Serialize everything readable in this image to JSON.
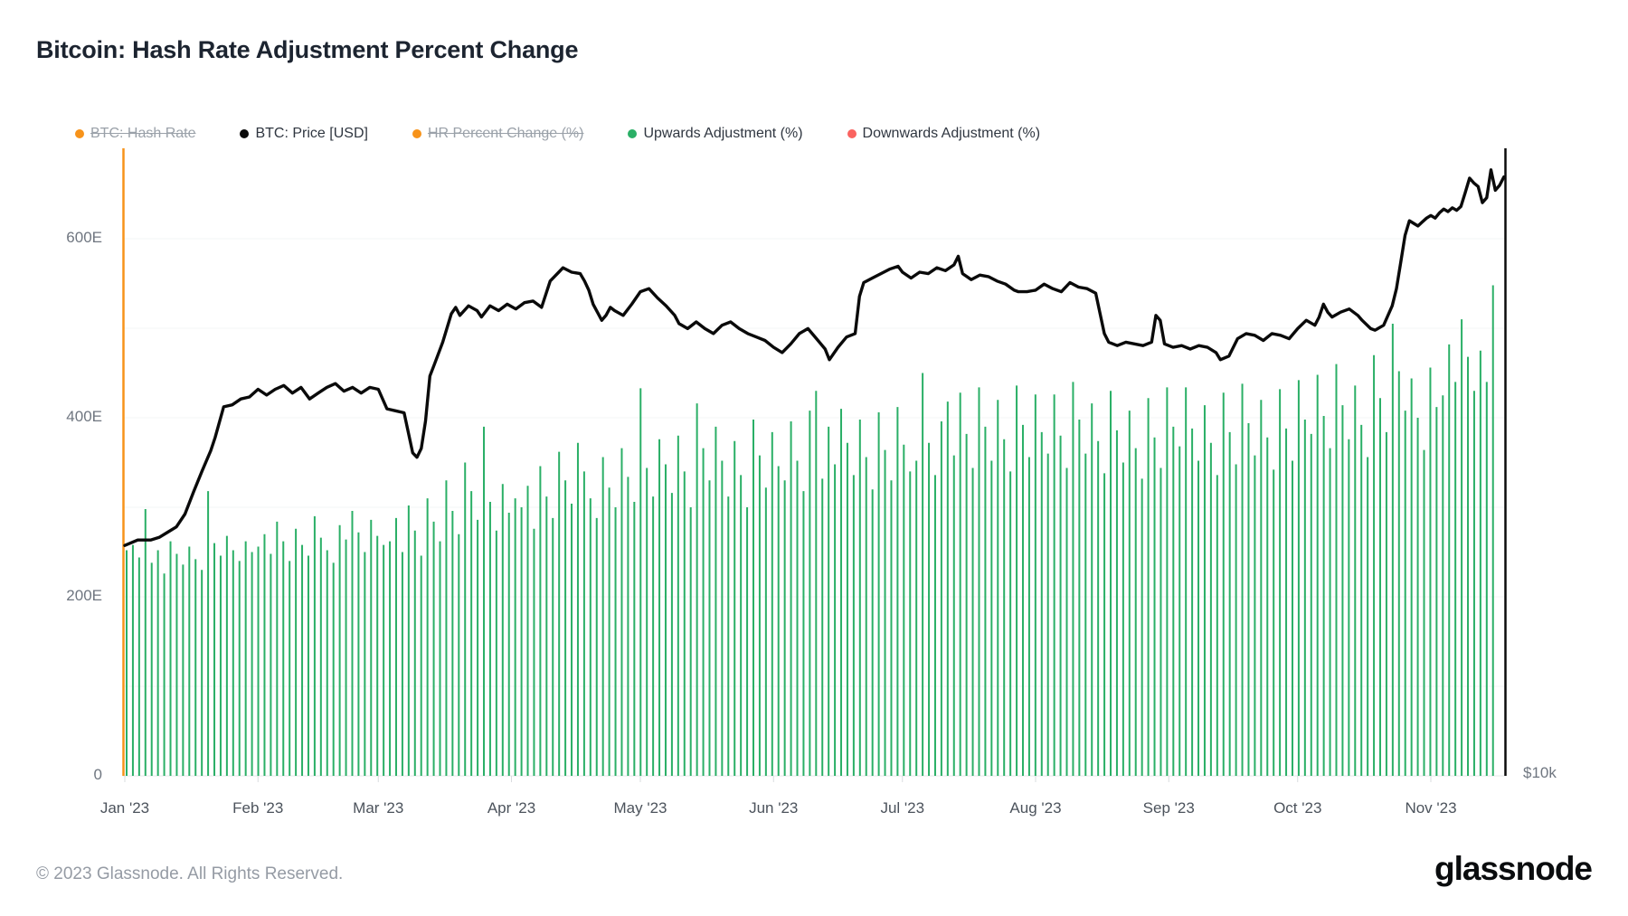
{
  "header": {
    "title": "Bitcoin: Hash Rate Adjustment Percent Change"
  },
  "legend": {
    "items": [
      {
        "label": "BTC: Hash Rate",
        "color": "#f7931a",
        "disabled": true
      },
      {
        "label": "BTC: Price [USD]",
        "color": "#0a0a0a",
        "disabled": false
      },
      {
        "label": "HR Percent Change (%)",
        "color": "#f7931a",
        "disabled": true
      },
      {
        "label": "Upwards Adjustment (%)",
        "color": "#2aaf66",
        "disabled": false
      },
      {
        "label": "Downwards Adjustment (%)",
        "color": "#fa6360",
        "disabled": false
      }
    ]
  },
  "chart_data": {
    "type": "mixed",
    "title": "Bitcoin: Hash Rate Adjustment Percent Change",
    "x_axis": {
      "unit": "date",
      "domain_days": [
        0,
        321
      ],
      "months": [
        {
          "label": "Jan '23",
          "day": 0
        },
        {
          "label": "Feb '23",
          "day": 31
        },
        {
          "label": "Mar '23",
          "day": 59
        },
        {
          "label": "Apr '23",
          "day": 90
        },
        {
          "label": "May '23",
          "day": 120
        },
        {
          "label": "Jun '23",
          "day": 151
        },
        {
          "label": "Jul '23",
          "day": 181
        },
        {
          "label": "Aug '23",
          "day": 212
        },
        {
          "label": "Sep '23",
          "day": 243
        },
        {
          "label": "Oct '23",
          "day": 273
        },
        {
          "label": "Nov '23",
          "day": 304
        }
      ]
    },
    "y_axis_left": {
      "unit": "EH/s",
      "gridline_step_E": 100,
      "range_E": [
        0,
        700
      ],
      "ticks": [
        {
          "label": "600E",
          "value": 600
        },
        {
          "label": "400E",
          "value": 400
        },
        {
          "label": "200E",
          "value": 200
        },
        {
          "label": "0",
          "value": 0
        }
      ]
    },
    "y_axis_right": {
      "unit": "USD",
      "scale": "log",
      "visible_label": {
        "label": "$10k",
        "value_usd_k": 10
      }
    },
    "annotations": {
      "start_marker": {
        "day": 0,
        "color": "#f7931a"
      }
    },
    "series": [
      {
        "name": "BTC: Price [USD]",
        "type": "line",
        "axis": "right",
        "color": "#0a0a0a",
        "points_day_usd_k": [
          [
            0,
            16.6
          ],
          [
            3,
            16.8
          ],
          [
            6,
            16.8
          ],
          [
            8,
            16.9
          ],
          [
            10,
            17.1
          ],
          [
            12,
            17.3
          ],
          [
            14,
            17.8
          ],
          [
            16,
            18.7
          ],
          [
            18,
            19.6
          ],
          [
            20,
            20.5
          ],
          [
            21,
            21.1
          ],
          [
            23,
            22.6
          ],
          [
            25,
            22.7
          ],
          [
            27,
            23.0
          ],
          [
            29,
            23.1
          ],
          [
            31,
            23.5
          ],
          [
            33,
            23.2
          ],
          [
            35,
            23.5
          ],
          [
            37,
            23.7
          ],
          [
            39,
            23.3
          ],
          [
            41,
            23.6
          ],
          [
            43,
            23.0
          ],
          [
            45,
            23.3
          ],
          [
            47,
            23.6
          ],
          [
            49,
            23.8
          ],
          [
            51,
            23.4
          ],
          [
            53,
            23.6
          ],
          [
            55,
            23.3
          ],
          [
            57,
            23.6
          ],
          [
            59,
            23.5
          ],
          [
            61,
            22.5
          ],
          [
            63,
            22.4
          ],
          [
            65,
            22.3
          ],
          [
            67,
            20.4
          ],
          [
            68,
            20.2
          ],
          [
            69,
            20.6
          ],
          [
            70,
            21.9
          ],
          [
            71,
            24.2
          ],
          [
            72,
            24.8
          ],
          [
            74,
            26.1
          ],
          [
            76,
            27.8
          ],
          [
            77,
            28.2
          ],
          [
            78,
            27.7
          ],
          [
            80,
            28.3
          ],
          [
            82,
            28.0
          ],
          [
            83,
            27.6
          ],
          [
            85,
            28.3
          ],
          [
            87,
            28.0
          ],
          [
            89,
            28.4
          ],
          [
            91,
            28.1
          ],
          [
            93,
            28.5
          ],
          [
            95,
            28.6
          ],
          [
            97,
            28.2
          ],
          [
            99,
            29.9
          ],
          [
            100,
            30.2
          ],
          [
            101,
            30.5
          ],
          [
            102,
            30.8
          ],
          [
            104,
            30.5
          ],
          [
            106,
            30.4
          ],
          [
            107,
            29.9
          ],
          [
            108,
            29.3
          ],
          [
            109,
            28.4
          ],
          [
            110,
            27.9
          ],
          [
            111,
            27.4
          ],
          [
            112,
            27.7
          ],
          [
            113,
            28.2
          ],
          [
            114,
            28.0
          ],
          [
            116,
            27.7
          ],
          [
            118,
            28.4
          ],
          [
            120,
            29.2
          ],
          [
            122,
            29.4
          ],
          [
            124,
            28.8
          ],
          [
            126,
            28.3
          ],
          [
            128,
            27.7
          ],
          [
            129,
            27.2
          ],
          [
            131,
            26.9
          ],
          [
            133,
            27.3
          ],
          [
            135,
            26.9
          ],
          [
            137,
            26.6
          ],
          [
            139,
            27.1
          ],
          [
            141,
            27.3
          ],
          [
            143,
            26.9
          ],
          [
            145,
            26.6
          ],
          [
            147,
            26.4
          ],
          [
            149,
            26.2
          ],
          [
            151,
            25.8
          ],
          [
            153,
            25.5
          ],
          [
            155,
            26.0
          ],
          [
            157,
            26.6
          ],
          [
            159,
            26.9
          ],
          [
            161,
            26.3
          ],
          [
            163,
            25.7
          ],
          [
            164,
            25.1
          ],
          [
            166,
            25.8
          ],
          [
            168,
            26.4
          ],
          [
            170,
            26.6
          ],
          [
            171,
            28.9
          ],
          [
            172,
            29.8
          ],
          [
            174,
            30.1
          ],
          [
            176,
            30.4
          ],
          [
            178,
            30.7
          ],
          [
            180,
            30.9
          ],
          [
            181,
            30.5
          ],
          [
            183,
            30.1
          ],
          [
            185,
            30.5
          ],
          [
            187,
            30.4
          ],
          [
            189,
            30.8
          ],
          [
            191,
            30.6
          ],
          [
            193,
            31.0
          ],
          [
            194,
            31.6
          ],
          [
            195,
            30.4
          ],
          [
            197,
            30.0
          ],
          [
            199,
            30.3
          ],
          [
            201,
            30.2
          ],
          [
            203,
            29.9
          ],
          [
            205,
            29.7
          ],
          [
            207,
            29.3
          ],
          [
            208,
            29.2
          ],
          [
            210,
            29.2
          ],
          [
            212,
            29.3
          ],
          [
            214,
            29.7
          ],
          [
            216,
            29.4
          ],
          [
            218,
            29.2
          ],
          [
            220,
            29.8
          ],
          [
            222,
            29.5
          ],
          [
            224,
            29.4
          ],
          [
            226,
            29.1
          ],
          [
            228,
            26.6
          ],
          [
            229,
            26.1
          ],
          [
            231,
            25.9
          ],
          [
            233,
            26.1
          ],
          [
            235,
            26.0
          ],
          [
            237,
            25.9
          ],
          [
            239,
            26.1
          ],
          [
            240,
            27.7
          ],
          [
            241,
            27.4
          ],
          [
            242,
            26.0
          ],
          [
            244,
            25.8
          ],
          [
            246,
            25.9
          ],
          [
            248,
            25.7
          ],
          [
            250,
            25.9
          ],
          [
            252,
            25.8
          ],
          [
            254,
            25.5
          ],
          [
            255,
            25.1
          ],
          [
            257,
            25.3
          ],
          [
            259,
            26.3
          ],
          [
            261,
            26.6
          ],
          [
            263,
            26.5
          ],
          [
            265,
            26.2
          ],
          [
            267,
            26.6
          ],
          [
            269,
            26.5
          ],
          [
            271,
            26.3
          ],
          [
            273,
            26.9
          ],
          [
            275,
            27.4
          ],
          [
            277,
            27.1
          ],
          [
            278,
            27.6
          ],
          [
            279,
            28.4
          ],
          [
            280,
            27.9
          ],
          [
            281,
            27.6
          ],
          [
            283,
            27.9
          ],
          [
            285,
            28.1
          ],
          [
            287,
            27.7
          ],
          [
            288,
            27.4
          ],
          [
            290,
            26.9
          ],
          [
            291,
            26.8
          ],
          [
            293,
            27.1
          ],
          [
            295,
            28.3
          ],
          [
            296,
            29.4
          ],
          [
            297,
            31.2
          ],
          [
            298,
            33.1
          ],
          [
            299,
            34.2
          ],
          [
            300,
            34.0
          ],
          [
            301,
            33.8
          ],
          [
            302,
            34.1
          ],
          [
            303,
            34.4
          ],
          [
            304,
            34.6
          ],
          [
            305,
            34.4
          ],
          [
            306,
            34.8
          ],
          [
            307,
            35.1
          ],
          [
            308,
            34.9
          ],
          [
            309,
            35.2
          ],
          [
            310,
            35.0
          ],
          [
            311,
            35.3
          ],
          [
            312,
            36.4
          ],
          [
            313,
            37.6
          ],
          [
            314,
            37.2
          ],
          [
            315,
            36.9
          ],
          [
            316,
            35.6
          ],
          [
            317,
            36.0
          ],
          [
            318,
            38.3
          ],
          [
            319,
            36.6
          ],
          [
            320,
            37.0
          ],
          [
            321,
            37.7
          ]
        ]
      },
      {
        "name": "Upwards Adjustment (%)",
        "type": "bar",
        "axis": "left",
        "color": "#2aaf66",
        "start_day": 0,
        "day_step": 1.49,
        "values_E": [
          252,
          258,
          244,
          298,
          238,
          252,
          226,
          262,
          248,
          236,
          256,
          242,
          230,
          318,
          260,
          246,
          268,
          252,
          240,
          262,
          250,
          256,
          270,
          248,
          284,
          262,
          240,
          276,
          258,
          246,
          290,
          266,
          252,
          238,
          280,
          264,
          296,
          272,
          250,
          286,
          268,
          258,
          262,
          288,
          250,
          302,
          274,
          246,
          310,
          284,
          262,
          330,
          296,
          270,
          350,
          318,
          286,
          390,
          306,
          274,
          326,
          294,
          310,
          300,
          324,
          276,
          346,
          312,
          288,
          362,
          330,
          304,
          372,
          340,
          310,
          288,
          356,
          322,
          300,
          366,
          334,
          306,
          433,
          344,
          312,
          376,
          348,
          316,
          380,
          340,
          300,
          416,
          366,
          330,
          390,
          352,
          312,
          374,
          336,
          300,
          398,
          358,
          322,
          384,
          346,
          330,
          396,
          352,
          318,
          408,
          430,
          332,
          390,
          348,
          410,
          372,
          336,
          398,
          356,
          320,
          406,
          364,
          330,
          412,
          370,
          340,
          352,
          450,
          372,
          336,
          396,
          418,
          358,
          428,
          382,
          344,
          434,
          390,
          352,
          420,
          376,
          340,
          436,
          392,
          356,
          426,
          384,
          360,
          426,
          380,
          344,
          440,
          398,
          360,
          416,
          374,
          338,
          430,
          386,
          350,
          408,
          366,
          332,
          422,
          378,
          344,
          434,
          390,
          368,
          434,
          388,
          352,
          414,
          372,
          336,
          428,
          384,
          348,
          438,
          394,
          358,
          420,
          378,
          342,
          432,
          388,
          352,
          442,
          398,
          382,
          448,
          402,
          366,
          460,
          414,
          376,
          436,
          392,
          356,
          470,
          422,
          384,
          505,
          452,
          408,
          444,
          400,
          364,
          456,
          412,
          425,
          482,
          440,
          510,
          468,
          430,
          475,
          440,
          548
        ]
      }
    ]
  },
  "footer": {
    "copyright": "© 2023 Glassnode. All Rights Reserved.",
    "brand": "glassnode"
  }
}
